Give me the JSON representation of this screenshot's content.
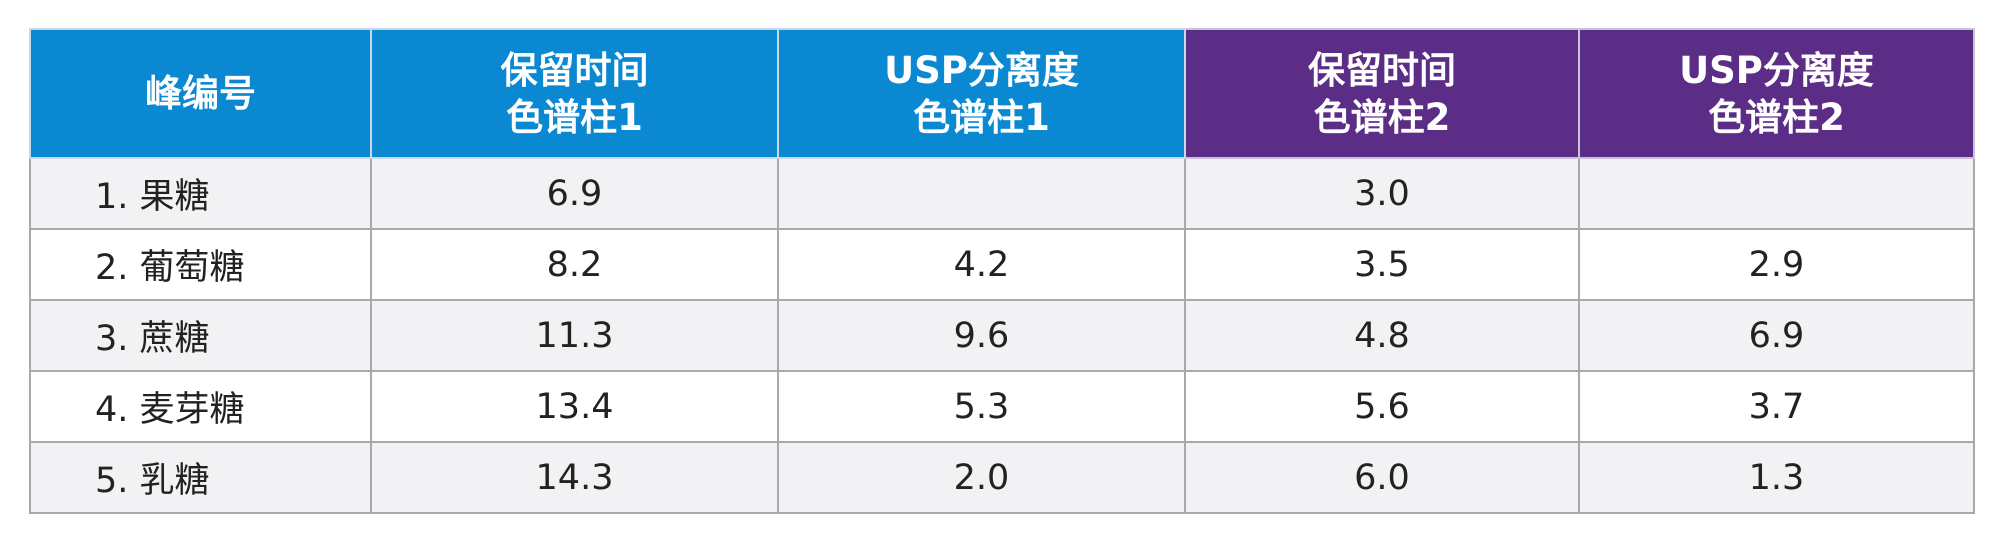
{
  "table": {
    "headers": [
      {
        "lines": [
          "峰编号"
        ]
      },
      {
        "lines": [
          "保留时间",
          "色谱柱1"
        ]
      },
      {
        "lines": [
          "USP分离度",
          "色谱柱1"
        ]
      },
      {
        "lines": [
          "保留时间",
          "色谱柱2"
        ]
      },
      {
        "lines": [
          "USP分离度",
          "色谱柱2"
        ]
      }
    ],
    "rows": [
      [
        "1. 果糖",
        "6.9",
        "",
        "3.0",
        ""
      ],
      [
        "2. 葡萄糖",
        "8.2",
        "4.2",
        "3.5",
        "2.9"
      ],
      [
        "3. 蔗糖",
        "11.3",
        "9.6",
        "4.8",
        "6.9"
      ],
      [
        "4. 麦芽糖",
        "13.4",
        "5.3",
        "5.6",
        "3.7"
      ],
      [
        "5. 乳糖",
        "14.3",
        "2.0",
        "6.0",
        "1.3"
      ]
    ]
  },
  "colors": {
    "header_blue": "#0b88d2",
    "header_purple": "#5b2d86",
    "row_shaded": "#f2f2f4",
    "border": "#a9a9ad"
  }
}
